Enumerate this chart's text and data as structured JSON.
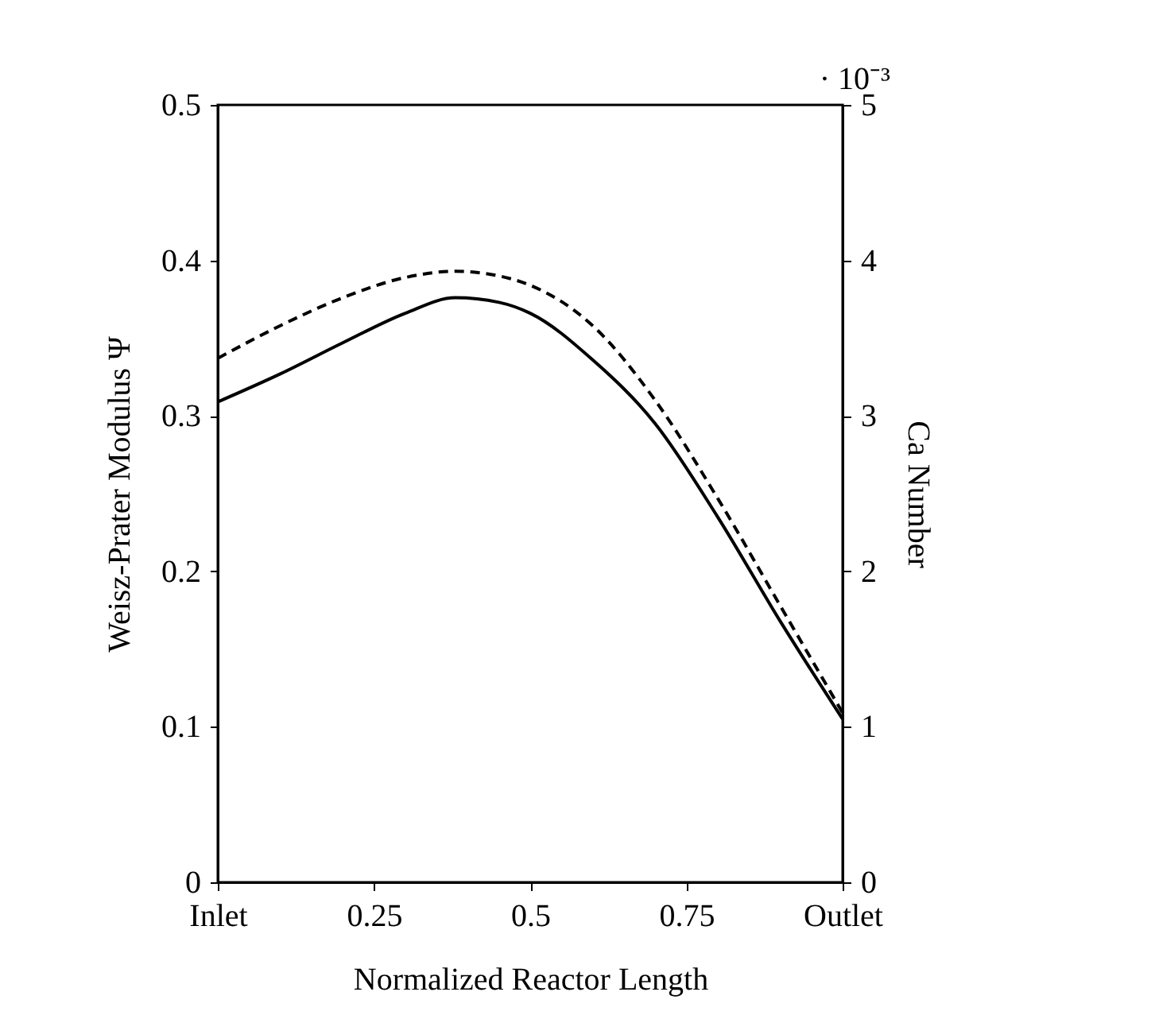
{
  "chart_data": {
    "type": "line",
    "xlabel": "Normalized Reactor Length",
    "ylabel": "Weisz-Prater Modulus Ψ",
    "y2label": "Ca Number",
    "x": [
      0,
      0.1,
      0.2,
      0.3,
      0.38,
      0.45,
      0.5,
      0.6,
      0.7,
      0.8,
      0.9,
      1
    ],
    "xlim": [
      0,
      1
    ],
    "xticks": [
      {
        "value": 0,
        "label": "Inlet"
      },
      0.25,
      0.5,
      0.75,
      {
        "value": 1,
        "label": "Outlet"
      }
    ],
    "ylim": [
      0,
      0.5
    ],
    "yticks": [
      0,
      0.1,
      0.2,
      0.3,
      0.4,
      0.5
    ],
    "y2lim": [
      0,
      5
    ],
    "y2ticks": [
      0,
      1,
      2,
      3,
      4,
      5
    ],
    "annotations": [
      "· 10⁻³"
    ],
    "grid": false,
    "series": [
      {
        "color": "#000000",
        "line_style": "solid",
        "values": [
          0.309,
          0.327,
          0.347,
          0.366,
          0.376,
          0.373,
          0.366,
          0.336,
          0.295,
          0.235,
          0.168,
          0.105
        ]
      },
      {
        "color": "#000000",
        "line_style": "dashed",
        "axis": "y2",
        "values": [
          3.37,
          3.58,
          3.76,
          3.89,
          3.93,
          3.9,
          3.84,
          3.58,
          3.1,
          2.47,
          1.78,
          1.09
        ]
      }
    ]
  }
}
